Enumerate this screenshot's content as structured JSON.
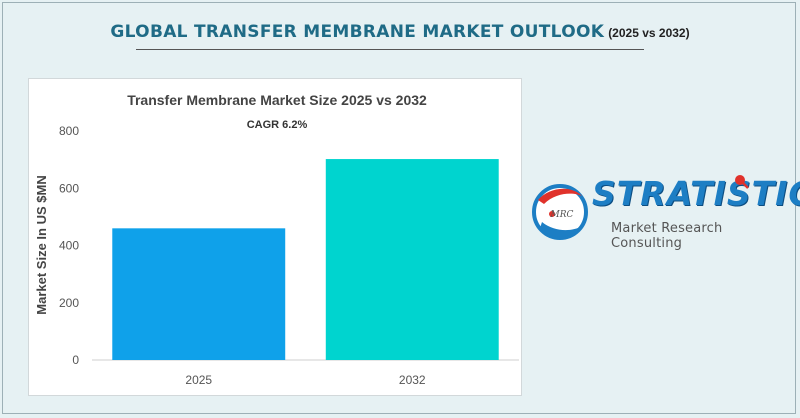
{
  "header": {
    "title": "GLOBAL TRANSFER MEMBRANE MARKET OUTLOOK",
    "subtitle": "(2025 vs 2032)"
  },
  "chart_data": {
    "type": "bar",
    "title": "Transfer Membrane Market Size 2025 vs 2032",
    "annotation": "CAGR 6.2%",
    "categories": [
      "2025",
      "2032"
    ],
    "values": [
      460,
      702
    ],
    "ylabel": "Market Size In US $MN",
    "xlabel": "",
    "ylim": [
      0,
      800
    ],
    "yticks": [
      0,
      200,
      400,
      600,
      800
    ],
    "colors": [
      "#0fa1ea",
      "#00d4cf"
    ],
    "grid": false,
    "legend": "none"
  },
  "logo": {
    "wordmark": "STRATISTICS",
    "tagline": "Market Research Consulting",
    "badge_text": "MRC",
    "colors": {
      "blue": "#1d7ec4",
      "red": "#e0322b"
    }
  }
}
